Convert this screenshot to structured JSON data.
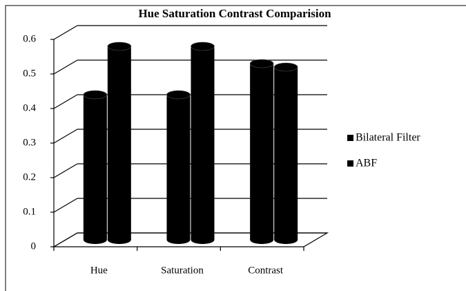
{
  "chart_data": {
    "type": "bar",
    "title": "Hue Saturation Contrast Comparision",
    "categories": [
      "Hue",
      "Saturation",
      "Contrast"
    ],
    "series": [
      {
        "name": "Bilateral Filter",
        "color": "#000000",
        "values": [
          0.42,
          0.42,
          0.51
        ]
      },
      {
        "name": "ABF",
        "color": "#000000",
        "values": [
          0.56,
          0.56,
          0.5
        ]
      }
    ],
    "ylim": [
      0,
      0.6
    ],
    "yticks": [
      0,
      0.1,
      0.2,
      0.3,
      0.4,
      0.5,
      0.6
    ],
    "grid": true,
    "legend": "right"
  }
}
